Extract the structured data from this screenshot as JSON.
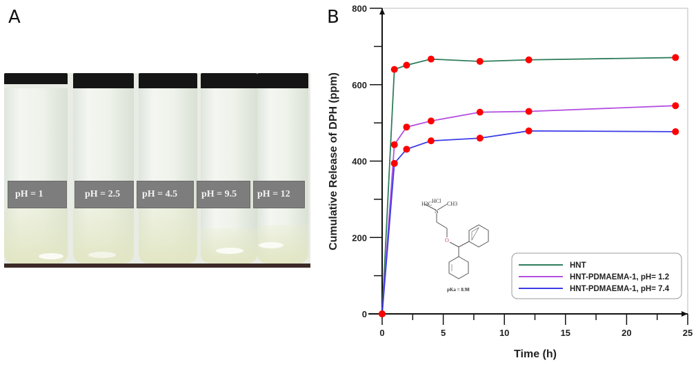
{
  "panels": {
    "a_label": "A",
    "b_label": "B"
  },
  "photo": {
    "description": "Vials of dispersion at different pH",
    "vials": [
      {
        "label": "pH = 1"
      },
      {
        "label": "pH = 2.5"
      },
      {
        "label": "pH = 4.5"
      },
      {
        "label": "pH = 9.5"
      },
      {
        "label": "pH = 12"
      }
    ]
  },
  "molecule": {
    "hcl": "HCl",
    "n": "N",
    "o": "O",
    "ch3_left": "H3C",
    "ch3_right": "CH3",
    "pka": "pKa = 8.98"
  },
  "chart_data": {
    "type": "line",
    "title": "",
    "xlabel": "Time (h)",
    "ylabel": "Cumulative Release of DPH (ppm)",
    "xlim": [
      0,
      25
    ],
    "ylim": [
      0,
      800
    ],
    "xticks": [
      0,
      5,
      10,
      15,
      20,
      25
    ],
    "yticks": [
      0,
      200,
      400,
      600,
      800
    ],
    "grid": false,
    "legend_position": "lower right",
    "marker_color": "#ff0000",
    "series": [
      {
        "name": "HNT",
        "color": "#2e7d5b",
        "x": [
          0,
          1,
          2,
          4,
          8,
          12,
          24
        ],
        "y": [
          0,
          640,
          651,
          667,
          661,
          665,
          671
        ]
      },
      {
        "name": "HNT-PDMAEMA-1, pH= 1.2",
        "color": "#b44fe0",
        "x": [
          0,
          1,
          2,
          4,
          8,
          12,
          24
        ],
        "y": [
          0,
          443,
          489,
          505,
          528,
          530,
          545
        ]
      },
      {
        "name": "HNT-PDMAEMA-1, pH= 7.4",
        "color": "#3b3be8",
        "x": [
          0,
          1,
          2,
          4,
          8,
          12,
          24
        ],
        "y": [
          0,
          394,
          431,
          453,
          460,
          479,
          477
        ]
      }
    ]
  }
}
